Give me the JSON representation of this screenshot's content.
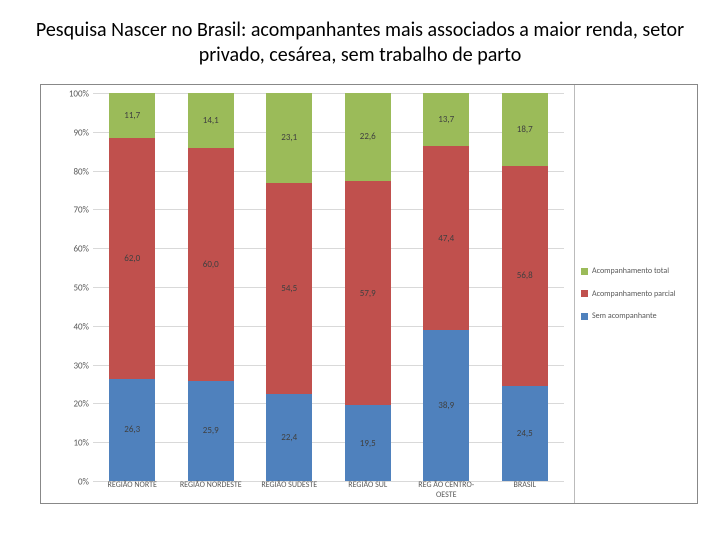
{
  "title": "Pesquisa Nascer no Brasil: acompanhantes mais  associados a maior renda, setor privado, cesárea, sem trabalho de parto",
  "title_fontsize": 20,
  "chart": {
    "type": "stacked_bar_100",
    "background_color": "#ffffff",
    "grid_color": "#d9d9d9",
    "axis_text_color": "#595959",
    "ylim": [
      0,
      100
    ],
    "ytick_step": 10,
    "ytick_suffix": "%",
    "bar_width_pct": 58,
    "categories": [
      "REGIÃO NORTE",
      "REGIÃO NORDESTE",
      "REGIÃO SUDESTE",
      "REGIÃO SUL",
      "REG ÃO CENTRO-OESTE",
      "BRASIL"
    ],
    "series": [
      {
        "name": "Sem acompanhante",
        "color": "#4f81bd",
        "values": [
          26.3,
          25.9,
          22.4,
          19.5,
          38.9,
          24.5
        ],
        "labels": [
          "26,3",
          "25,9",
          "22,4",
          "19,5",
          "38,9",
          "24,5"
        ]
      },
      {
        "name": "Acompanhamento parcial",
        "color": "#c0504d",
        "values": [
          62.0,
          60.0,
          54.5,
          57.9,
          47.4,
          56.8
        ],
        "labels": [
          "62,0",
          "60,0",
          "54,5",
          "57,9",
          "47,4",
          "56,8"
        ]
      },
      {
        "name": "Acompanhamento total",
        "color": "#9bbb59",
        "values": [
          11.7,
          14.1,
          23.1,
          22.6,
          13.7,
          18.7
        ],
        "labels": [
          "11,7",
          "14,1",
          "23,1",
          "22,6",
          "13,7",
          "18,7"
        ]
      }
    ],
    "legend": [
      {
        "swatch": "#9bbb59",
        "label": "Acompanhamento total"
      },
      {
        "swatch": "#c0504d",
        "label": "Acompanhamento parcial"
      },
      {
        "swatch": "#4f81bd",
        "label": "Sem acompanhante"
      }
    ],
    "axis_fontsize": 9,
    "category_fontsize": 8,
    "legend_fontsize": 8,
    "data_label_fontsize": 9
  }
}
